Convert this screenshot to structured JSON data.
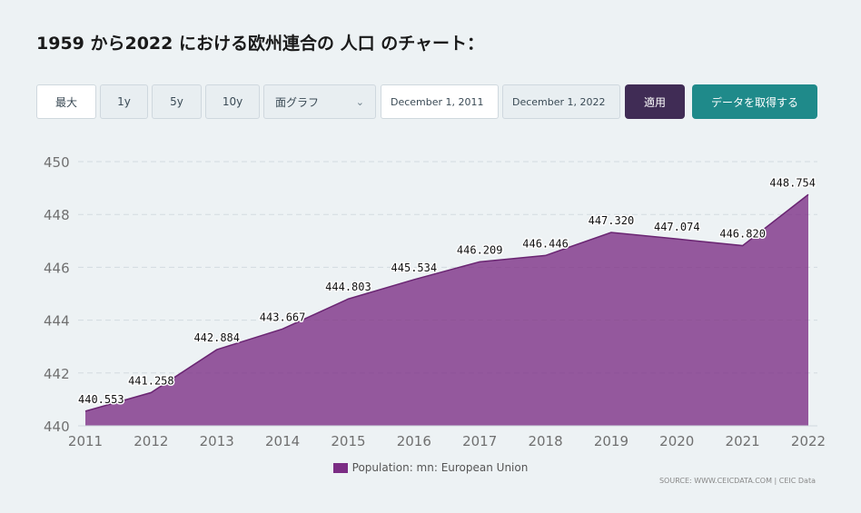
{
  "title": "1959 から2022 における欧州連合の 人口 のチャート：",
  "controls": {
    "range_buttons": [
      "最大",
      "1y",
      "5y",
      "10y"
    ],
    "chart_type": "面グラフ",
    "start_date": "December 1, 2011",
    "end_date": "December 1, 2022",
    "apply_label": "適用",
    "get_data_label": "データを取得する"
  },
  "colors": {
    "area": "#7b2d84",
    "apply": "#402c55",
    "get_data": "#1f8a8a"
  },
  "legend": {
    "label": "Population: mn: European Union"
  },
  "source": "SOURCE: WWW.CEICDATA.COM | CEIC Data",
  "chart_data": {
    "type": "area",
    "title": "",
    "xlabel": "",
    "ylabel": "",
    "x": [
      "2011",
      "2012",
      "2013",
      "2014",
      "2015",
      "2016",
      "2017",
      "2018",
      "2019",
      "2020",
      "2021",
      "2022"
    ],
    "series": [
      {
        "name": "Population: mn: European Union",
        "values": [
          440.553,
          441.258,
          442.884,
          443.667,
          444.803,
          445.534,
          446.209,
          446.446,
          447.32,
          447.074,
          446.82,
          448.754
        ]
      }
    ],
    "data_labels": [
      "440.553",
      "441.258",
      "442.884",
      "443.667",
      "444.803",
      "445.534",
      "446.209",
      "446.446",
      "447.320",
      "447.074",
      "446.820",
      "448.754"
    ],
    "ylim": [
      440,
      450
    ],
    "yticks": [
      "440",
      "442",
      "444",
      "446",
      "448",
      "450"
    ],
    "grid": true,
    "legend_position": "bottom"
  }
}
